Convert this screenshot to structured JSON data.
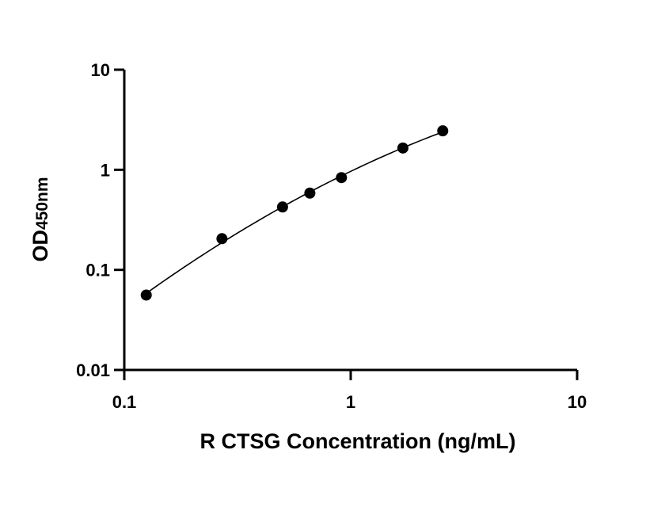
{
  "chart_data": {
    "type": "scatter",
    "xlabel": "R CTSG Concentration (ng/mL)",
    "ylabel": {
      "main": "OD",
      "subscript": "450nm"
    },
    "xscale": "log",
    "yscale": "log",
    "xlim": [
      0.1,
      10
    ],
    "ylim": [
      0.01,
      10
    ],
    "x_ticks": [
      {
        "value": 0.1,
        "label": "0.1"
      },
      {
        "value": 1,
        "label": "1"
      },
      {
        "value": 10,
        "label": "10"
      }
    ],
    "y_ticks": [
      {
        "value": 0.01,
        "label": "0.01"
      },
      {
        "value": 0.1,
        "label": "0.1"
      },
      {
        "value": 1,
        "label": "1"
      },
      {
        "value": 10,
        "label": "10"
      }
    ],
    "grid": false,
    "legend": "none",
    "points": [
      {
        "x": 0.125,
        "y": 0.056
      },
      {
        "x": 0.27,
        "y": 0.205
      },
      {
        "x": 0.5,
        "y": 0.425
      },
      {
        "x": 0.66,
        "y": 0.585
      },
      {
        "x": 0.91,
        "y": 0.835
      },
      {
        "x": 1.7,
        "y": 1.65
      },
      {
        "x": 2.55,
        "y": 2.45
      }
    ],
    "fit_curve": true,
    "color": "#000000"
  }
}
